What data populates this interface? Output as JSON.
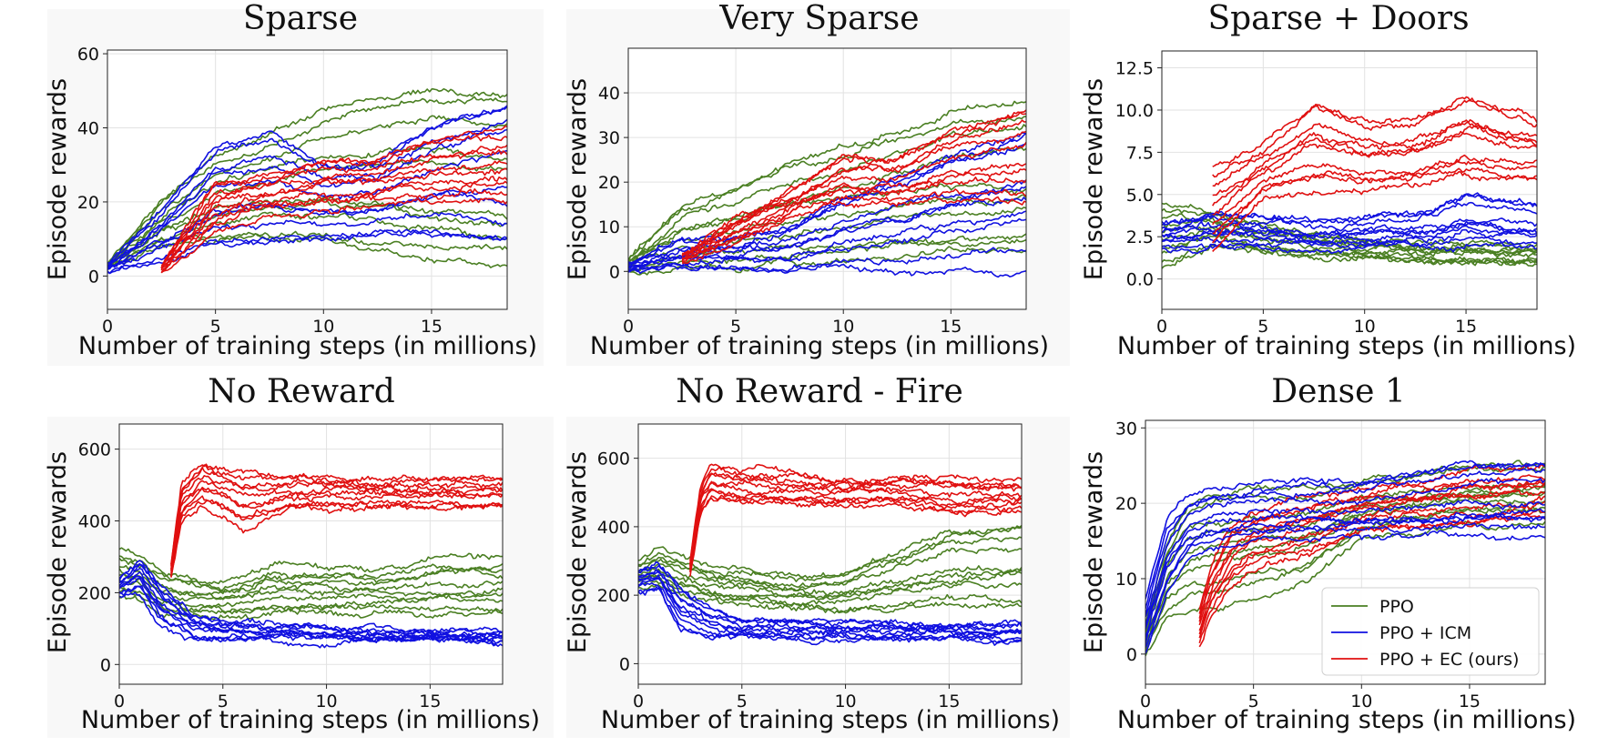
{
  "figure": {
    "xlabel": "Number of training steps (in millions)",
    "ylabel": "Episode rewards",
    "legend": [
      {
        "label": "PPO",
        "color": "#4a7f22"
      },
      {
        "label": "PPO + ICM",
        "color": "#1010e0"
      },
      {
        "label": "PPO + EC (ours)",
        "color": "#e01010"
      }
    ]
  },
  "colors": {
    "ppo": "#4a7f22",
    "icm": "#1010e0",
    "ec": "#e01010"
  },
  "chart_data": [
    {
      "type": "line",
      "title": "Sparse",
      "xlabel": "Number of training steps (in millions)",
      "ylabel": "Episode rewards",
      "xlim": [
        0,
        18.5
      ],
      "ylim": [
        -9,
        61
      ],
      "xticks": [
        0,
        5,
        10,
        15
      ],
      "yticks": [
        0,
        20,
        40,
        60
      ],
      "grid": true,
      "legend": null,
      "series": [
        {
          "group": "PPO",
          "runs": 10,
          "x": [
            0,
            2.5,
            5,
            7.5,
            10,
            12.5,
            15,
            18.5
          ],
          "mean": [
            2,
            14,
            22,
            27,
            30,
            33,
            35,
            34
          ],
          "min": [
            2,
            8,
            9,
            10,
            9,
            6,
            4,
            2
          ],
          "max": [
            3,
            20,
            32,
            38,
            44,
            48,
            50,
            49
          ]
        },
        {
          "group": "PPO + ICM",
          "runs": 10,
          "x": [
            0,
            2.5,
            5,
            7.5,
            10,
            12.5,
            15,
            18.5
          ],
          "mean": [
            2,
            8,
            16,
            18,
            19,
            21,
            23,
            24
          ],
          "min": [
            1,
            4,
            8,
            9,
            10,
            11,
            12,
            10
          ],
          "max": [
            3,
            18,
            35,
            38,
            30,
            30,
            40,
            46
          ]
        },
        {
          "group": "PPO + EC (ours)",
          "runs": 10,
          "x": [
            2.5,
            5,
            7.5,
            10,
            12.5,
            15,
            18.5
          ],
          "mean": [
            2,
            17,
            22,
            24,
            25,
            28,
            28
          ],
          "min": [
            1,
            12,
            17,
            18,
            19,
            20,
            20
          ],
          "max": [
            3,
            26,
            28,
            32,
            32,
            38,
            41
          ]
        }
      ]
    },
    {
      "type": "line",
      "title": "Very Sparse",
      "xlabel": "Number of training steps (in millions)",
      "ylabel": "Episode rewards",
      "xlim": [
        0,
        18.5
      ],
      "ylim": [
        -8.5,
        50
      ],
      "xticks": [
        0,
        5,
        10,
        15
      ],
      "yticks": [
        0,
        10,
        20,
        30,
        40
      ],
      "grid": true,
      "legend": null,
      "series": [
        {
          "group": "PPO",
          "runs": 10,
          "x": [
            0,
            2.5,
            5,
            7.5,
            10,
            12.5,
            15,
            18.5
          ],
          "mean": [
            1,
            8,
            12,
            14,
            18,
            20,
            22,
            22
          ],
          "min": [
            0,
            0,
            0,
            0,
            0,
            0,
            0,
            0
          ],
          "max": [
            3,
            15,
            19,
            25,
            28,
            33,
            36,
            38
          ]
        },
        {
          "group": "PPO + ICM",
          "runs": 10,
          "x": [
            0,
            2.5,
            5,
            7.5,
            10,
            12.5,
            15,
            18.5
          ],
          "mean": [
            1,
            4,
            6,
            6,
            8,
            10,
            12,
            14
          ],
          "min": [
            0,
            0,
            0,
            0,
            0,
            0,
            0,
            0
          ],
          "max": [
            2,
            7,
            8,
            10,
            18,
            22,
            27,
            32
          ]
        },
        {
          "group": "PPO + EC (ours)",
          "runs": 10,
          "x": [
            2.5,
            5,
            7.5,
            10,
            12.5,
            15,
            18.5
          ],
          "mean": [
            3,
            9,
            15,
            20,
            22,
            24,
            27
          ],
          "min": [
            2,
            7,
            12,
            16,
            15,
            16,
            16
          ],
          "max": [
            4,
            12,
            18,
            26,
            26,
            34,
            40
          ]
        }
      ]
    },
    {
      "type": "line",
      "title": "Sparse + Doors",
      "xlabel": "Number of training steps (in millions)",
      "ylabel": "Episode rewards",
      "xlim": [
        0,
        18.5
      ],
      "ylim": [
        -1.8,
        13.5
      ],
      "xticks": [
        0,
        5,
        10,
        15
      ],
      "yticks": [
        0.0,
        2.5,
        5.0,
        7.5,
        10.0,
        12.5
      ],
      "grid": true,
      "legend": null,
      "series": [
        {
          "group": "PPO",
          "runs": 10,
          "x": [
            0,
            2.5,
            5,
            7.5,
            10,
            12.5,
            15,
            18.5
          ],
          "mean": [
            2.5,
            3.0,
            2.3,
            1.9,
            1.7,
            1.6,
            1.5,
            1.3
          ],
          "min": [
            0.6,
            2.0,
            1.4,
            1.1,
            0.9,
            0.8,
            0.7,
            0.6
          ],
          "max": [
            4.5,
            4.0,
            3.2,
            2.7,
            2.4,
            2.3,
            2.2,
            2.1
          ]
        },
        {
          "group": "PPO + ICM",
          "runs": 10,
          "x": [
            0,
            2.5,
            5,
            7.5,
            10,
            12.5,
            15,
            18.5
          ],
          "mean": [
            2.5,
            2.8,
            2.8,
            2.5,
            2.5,
            2.6,
            2.7,
            2.8
          ],
          "min": [
            1.8,
            1.8,
            1.8,
            1.8,
            1.9,
            1.9,
            1.9,
            1.9
          ],
          "max": [
            3.3,
            4.0,
            3.8,
            3.4,
            3.7,
            3.8,
            5.1,
            4.3
          ]
        },
        {
          "group": "PPO + EC (ours)",
          "runs": 10,
          "x": [
            2.5,
            5,
            7.5,
            10,
            12.5,
            15,
            18.5
          ],
          "mean": [
            2.0,
            5.5,
            6.5,
            6.8,
            7.2,
            8.0,
            7.8
          ],
          "min": [
            1.6,
            4.8,
            5.2,
            5.3,
            5.5,
            6.0,
            5.8
          ],
          "max": [
            6.6,
            8.0,
            10.5,
            9.2,
            9.4,
            10.8,
            9.5
          ]
        }
      ]
    },
    {
      "type": "line",
      "title": "No Reward",
      "xlabel": "Number of training steps (in millions)",
      "ylabel": "Episode rewards",
      "xlim": [
        0,
        18.5
      ],
      "ylim": [
        -55,
        670
      ],
      "xticks": [
        0,
        5,
        10,
        15
      ],
      "yticks": [
        0,
        200,
        400,
        600
      ],
      "grid": true,
      "legend": null,
      "series": [
        {
          "group": "PPO",
          "runs": 10,
          "x": [
            0,
            1,
            2,
            3.5,
            5,
            7.5,
            10,
            12.5,
            15,
            18.5
          ],
          "mean": [
            250,
            240,
            210,
            190,
            175,
            190,
            200,
            190,
            200,
            200
          ],
          "min": [
            190,
            180,
            150,
            140,
            130,
            140,
            140,
            150,
            140,
            140
          ],
          "max": [
            320,
            300,
            260,
            240,
            230,
            280,
            270,
            260,
            300,
            300
          ]
        },
        {
          "group": "PPO + ICM",
          "runs": 10,
          "x": [
            0,
            1,
            2,
            3.5,
            5,
            7.5,
            10,
            12.5,
            15,
            18.5
          ],
          "mean": [
            210,
            230,
            160,
            100,
            95,
            90,
            85,
            80,
            80,
            78
          ],
          "min": [
            190,
            200,
            110,
            70,
            70,
            68,
            65,
            62,
            62,
            60
          ],
          "max": [
            240,
            300,
            220,
            140,
            120,
            115,
            110,
            100,
            98,
            95
          ]
        },
        {
          "group": "PPO + EC (ours)",
          "runs": 10,
          "x": [
            2.5,
            3,
            4,
            5,
            6,
            8,
            10,
            12.5,
            15,
            18.5
          ],
          "mean": [
            260,
            440,
            500,
            480,
            470,
            480,
            480,
            480,
            485,
            485
          ],
          "min": [
            240,
            400,
            440,
            420,
            380,
            430,
            430,
            440,
            440,
            440
          ],
          "max": [
            280,
            500,
            560,
            540,
            530,
            520,
            530,
            520,
            520,
            515
          ]
        }
      ]
    },
    {
      "type": "line",
      "title": "No Reward - Fire",
      "xlabel": "Number of training steps (in millions)",
      "ylabel": "Episode rewards",
      "xlim": [
        0,
        18.5
      ],
      "ylim": [
        -60,
        700
      ],
      "xticks": [
        0,
        5,
        10,
        15
      ],
      "yticks": [
        0,
        200,
        400,
        600
      ],
      "grid": true,
      "legend": null,
      "series": [
        {
          "group": "PPO",
          "runs": 10,
          "x": [
            0,
            1,
            2,
            3.5,
            5,
            7.5,
            10,
            12.5,
            15,
            18.5
          ],
          "mean": [
            260,
            280,
            260,
            240,
            220,
            210,
            200,
            230,
            250,
            250
          ],
          "min": [
            220,
            230,
            200,
            180,
            170,
            160,
            150,
            160,
            170,
            170
          ],
          "max": [
            300,
            330,
            310,
            280,
            270,
            250,
            260,
            320,
            380,
            390
          ]
        },
        {
          "group": "PPO + ICM",
          "runs": 10,
          "x": [
            0,
            1,
            2,
            3.5,
            5,
            7.5,
            10,
            12.5,
            15,
            18.5
          ],
          "mean": [
            240,
            250,
            160,
            110,
            100,
            98,
            95,
            92,
            92,
            90
          ],
          "min": [
            210,
            220,
            110,
            70,
            75,
            75,
            72,
            70,
            70,
            70
          ],
          "max": [
            270,
            290,
            220,
            160,
            130,
            125,
            120,
            115,
            115,
            115
          ]
        },
        {
          "group": "PPO + EC (ours)",
          "runs": 10,
          "x": [
            2.5,
            3,
            3.5,
            5,
            7.5,
            10,
            12.5,
            15,
            18.5
          ],
          "mean": [
            280,
            480,
            530,
            510,
            500,
            495,
            500,
            495,
            495
          ],
          "min": [
            260,
            440,
            480,
            470,
            460,
            460,
            460,
            450,
            450
          ],
          "max": [
            300,
            520,
            580,
            560,
            550,
            540,
            540,
            540,
            530
          ]
        }
      ]
    },
    {
      "type": "line",
      "title": "Dense 1",
      "xlabel": "Number of training steps (in millions)",
      "ylabel": "Episode rewards",
      "xlim": [
        0,
        18.5
      ],
      "ylim": [
        -4,
        31
      ],
      "xticks": [
        0,
        5,
        10,
        15
      ],
      "yticks": [
        0,
        10,
        20,
        30
      ],
      "grid": true,
      "legend": "lower right",
      "series": [
        {
          "group": "PPO",
          "runs": 10,
          "x": [
            0,
            1,
            2,
            3,
            5,
            7.5,
            10,
            12.5,
            15,
            18.5
          ],
          "mean": [
            2,
            12,
            14,
            12,
            15,
            18,
            19,
            20,
            21,
            21
          ],
          "min": [
            0,
            5,
            6,
            6,
            7,
            9,
            15,
            16,
            17,
            17
          ],
          "max": [
            4,
            15,
            20,
            21,
            22,
            22,
            23,
            24,
            25,
            25
          ]
        },
        {
          "group": "PPO + ICM",
          "runs": 10,
          "x": [
            0,
            1,
            2,
            3,
            5,
            7.5,
            10,
            12.5,
            15,
            18.5
          ],
          "mean": [
            3,
            13,
            17,
            18,
            18.5,
            19,
            19.5,
            19.5,
            19.5,
            19.5
          ],
          "min": [
            0,
            8,
            13,
            14,
            15,
            15,
            15,
            15,
            15,
            15
          ],
          "max": [
            7,
            18,
            21,
            22,
            22,
            23,
            23,
            24,
            25,
            25
          ]
        },
        {
          "group": "PPO + EC (ours)",
          "runs": 10,
          "x": [
            2.5,
            3,
            4,
            5,
            7.5,
            10,
            12.5,
            15,
            18.5
          ],
          "mean": [
            3,
            8,
            13,
            15,
            17,
            19,
            20,
            20.5,
            21
          ],
          "min": [
            1,
            5,
            9,
            11,
            13,
            16,
            17,
            17,
            18
          ],
          "max": [
            6,
            11,
            17,
            19,
            21,
            22,
            23,
            24,
            25
          ]
        }
      ]
    }
  ]
}
